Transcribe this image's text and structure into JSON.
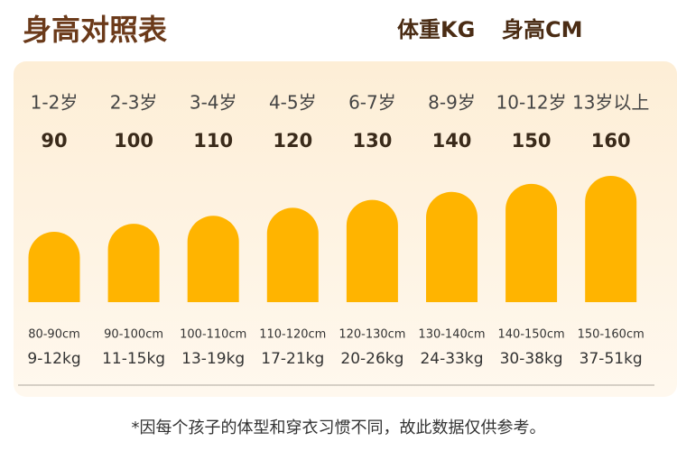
{
  "header": {
    "title": "身高对照表",
    "weight_unit": "体重KG",
    "height_unit": "身高CM"
  },
  "columns": [
    {
      "age": "1-2岁",
      "size": 90,
      "height_range": "80-90cm",
      "weight": "9-12kg"
    },
    {
      "age": "2-3岁",
      "size": 100,
      "height_range": "90-100cm",
      "weight": "11-15kg"
    },
    {
      "age": "3-4岁",
      "size": 110,
      "height_range": "100-110cm",
      "weight": "13-19kg"
    },
    {
      "age": "4-5岁",
      "size": 120,
      "height_range": "110-120cm",
      "weight": "17-21kg"
    },
    {
      "age": "6-7岁",
      "size": 130,
      "height_range": "120-130cm",
      "weight": "20-26kg"
    },
    {
      "age": "8-9岁",
      "size": 140,
      "height_range": "130-140cm",
      "weight": "24-33kg"
    },
    {
      "age": "10-12岁",
      "size": 150,
      "height_range": "140-150cm",
      "weight": "30-38kg"
    },
    {
      "age": "13岁以上",
      "size": 160,
      "height_range": "150-160cm",
      "weight": "37-51kg"
    }
  ],
  "footnote": "*因每个孩子的体型和穿衣习惯不同，故此数据仅供参考。"
}
